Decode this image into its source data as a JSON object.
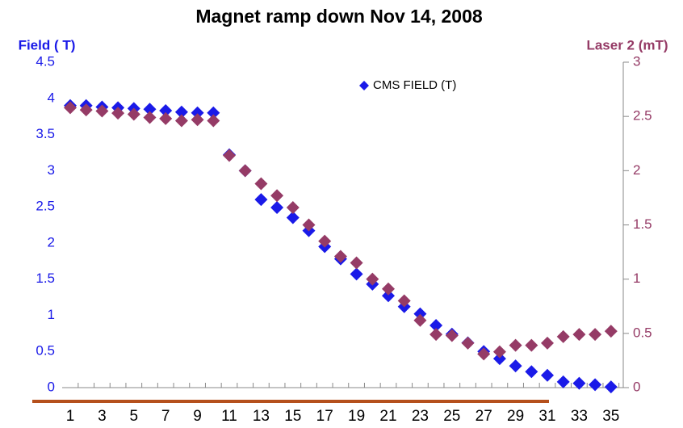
{
  "chart_data": {
    "type": "scatter",
    "title": "Magnet ramp down Nov 14, 2008",
    "y_label": "Field ( T)",
    "y2_label": "Laser 2 (mT)",
    "categories": [
      1,
      null,
      3,
      null,
      5,
      null,
      7,
      null,
      9,
      null,
      11,
      null,
      13,
      null,
      15,
      null,
      17,
      null,
      19,
      null,
      21,
      null,
      23,
      null,
      25,
      null,
      27,
      null,
      29,
      null,
      31,
      null,
      33,
      null,
      35
    ],
    "ylim": [
      0,
      4.5
    ],
    "yticks": [
      0,
      0.5,
      1,
      1.5,
      2,
      2.5,
      3,
      3.5,
      4,
      4.5
    ],
    "y2lim": [
      0,
      3
    ],
    "y2ticks": [
      0,
      0.5,
      1,
      1.5,
      2,
      2.5,
      3
    ],
    "legend": "top",
    "series": [
      {
        "name": "CMS FIELD (T)",
        "color": "#1a1ae8",
        "values": [
          3.9,
          3.9,
          3.88,
          3.87,
          3.86,
          3.85,
          3.83,
          3.81,
          3.8,
          3.8,
          3.22,
          3.0,
          2.6,
          2.49,
          2.35,
          2.17,
          1.95,
          1.78,
          1.57,
          1.43,
          1.27,
          1.12,
          1.02,
          0.86,
          0.74,
          0.62,
          0.5,
          0.4,
          0.3,
          0.22,
          0.17,
          0.08,
          0.06,
          0.04,
          0.01
        ]
      },
      {
        "color": "#953b66",
        "axis": "y2",
        "values": [
          2.58,
          2.56,
          2.55,
          2.53,
          2.52,
          2.49,
          2.48,
          2.46,
          2.47,
          2.46,
          2.14,
          2.0,
          1.88,
          1.77,
          1.66,
          1.5,
          1.35,
          1.21,
          1.15,
          1.0,
          0.91,
          0.8,
          0.62,
          0.49,
          0.48,
          0.41,
          0.31,
          0.33,
          0.39,
          0.39,
          0.41,
          0.47,
          0.49,
          0.49,
          0.52
        ]
      }
    ]
  }
}
